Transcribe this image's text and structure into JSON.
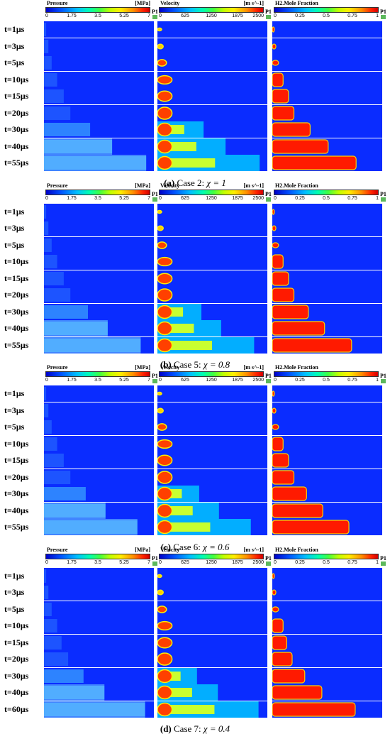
{
  "colorbars": [
    {
      "title": "Pressure",
      "unit": "[MPa]",
      "ticks": [
        "0",
        "1.75",
        "3.5",
        "5.25",
        "7"
      ],
      "marker": "P1"
    },
    {
      "title": "Velocity",
      "unit": "[m s^-1]",
      "ticks": [
        "0",
        "625",
        "1250",
        "1875",
        "2500"
      ],
      "marker": "P1"
    },
    {
      "title": "H2.Mole Fraction",
      "unit": "",
      "ticks": [
        "0",
        "0.25",
        "0.5",
        "0.75",
        "1"
      ],
      "marker": "P1"
    }
  ],
  "panels": [
    {
      "label": "(a)",
      "case": "Case 2:",
      "chi": "χ = 1",
      "times": [
        "t=1μs",
        "t=3μs",
        "t=5μs",
        "t=10μs",
        "t=15μs",
        "t=20μs",
        "t=30μs",
        "t=40μs",
        "t=55μs"
      ],
      "extent": [
        0.02,
        0.04,
        0.07,
        0.12,
        0.18,
        0.24,
        0.42,
        0.62,
        0.93
      ]
    },
    {
      "label": "(b)",
      "case": "Case 5:",
      "chi": "χ = 0.8",
      "times": [
        "t=1μs",
        "t=3μs",
        "t=5μs",
        "t=10μs",
        "t=15μs",
        "t=20μs",
        "t=30μs",
        "t=40μs",
        "t=55μs"
      ],
      "extent": [
        0.02,
        0.04,
        0.07,
        0.12,
        0.18,
        0.24,
        0.4,
        0.58,
        0.88
      ]
    },
    {
      "label": "(c)",
      "case": "Case 6:",
      "chi": "χ = 0.6",
      "times": [
        "t=1μs",
        "t=3μs",
        "t=5μs",
        "t=10μs",
        "t=15μs",
        "t=20μs",
        "t=30μs",
        "t=40μs",
        "t=55μs"
      ],
      "extent": [
        0.02,
        0.04,
        0.07,
        0.12,
        0.18,
        0.24,
        0.38,
        0.56,
        0.85
      ]
    },
    {
      "label": "(d)",
      "case": "Case 7:",
      "chi": "χ = 0.4",
      "times": [
        "t=1μs",
        "t=3μs",
        "t=5μs",
        "t=10μs",
        "t=15μs",
        "t=20μs",
        "t=30μs",
        "t=40μs",
        "t=60μs"
      ],
      "extent": [
        0.02,
        0.04,
        0.07,
        0.12,
        0.16,
        0.22,
        0.36,
        0.55,
        0.92
      ]
    }
  ],
  "colors": {
    "background_field": "#0a2cff",
    "high": "#ff2000",
    "mid": "#40ff40",
    "low": "#00c0ff"
  }
}
